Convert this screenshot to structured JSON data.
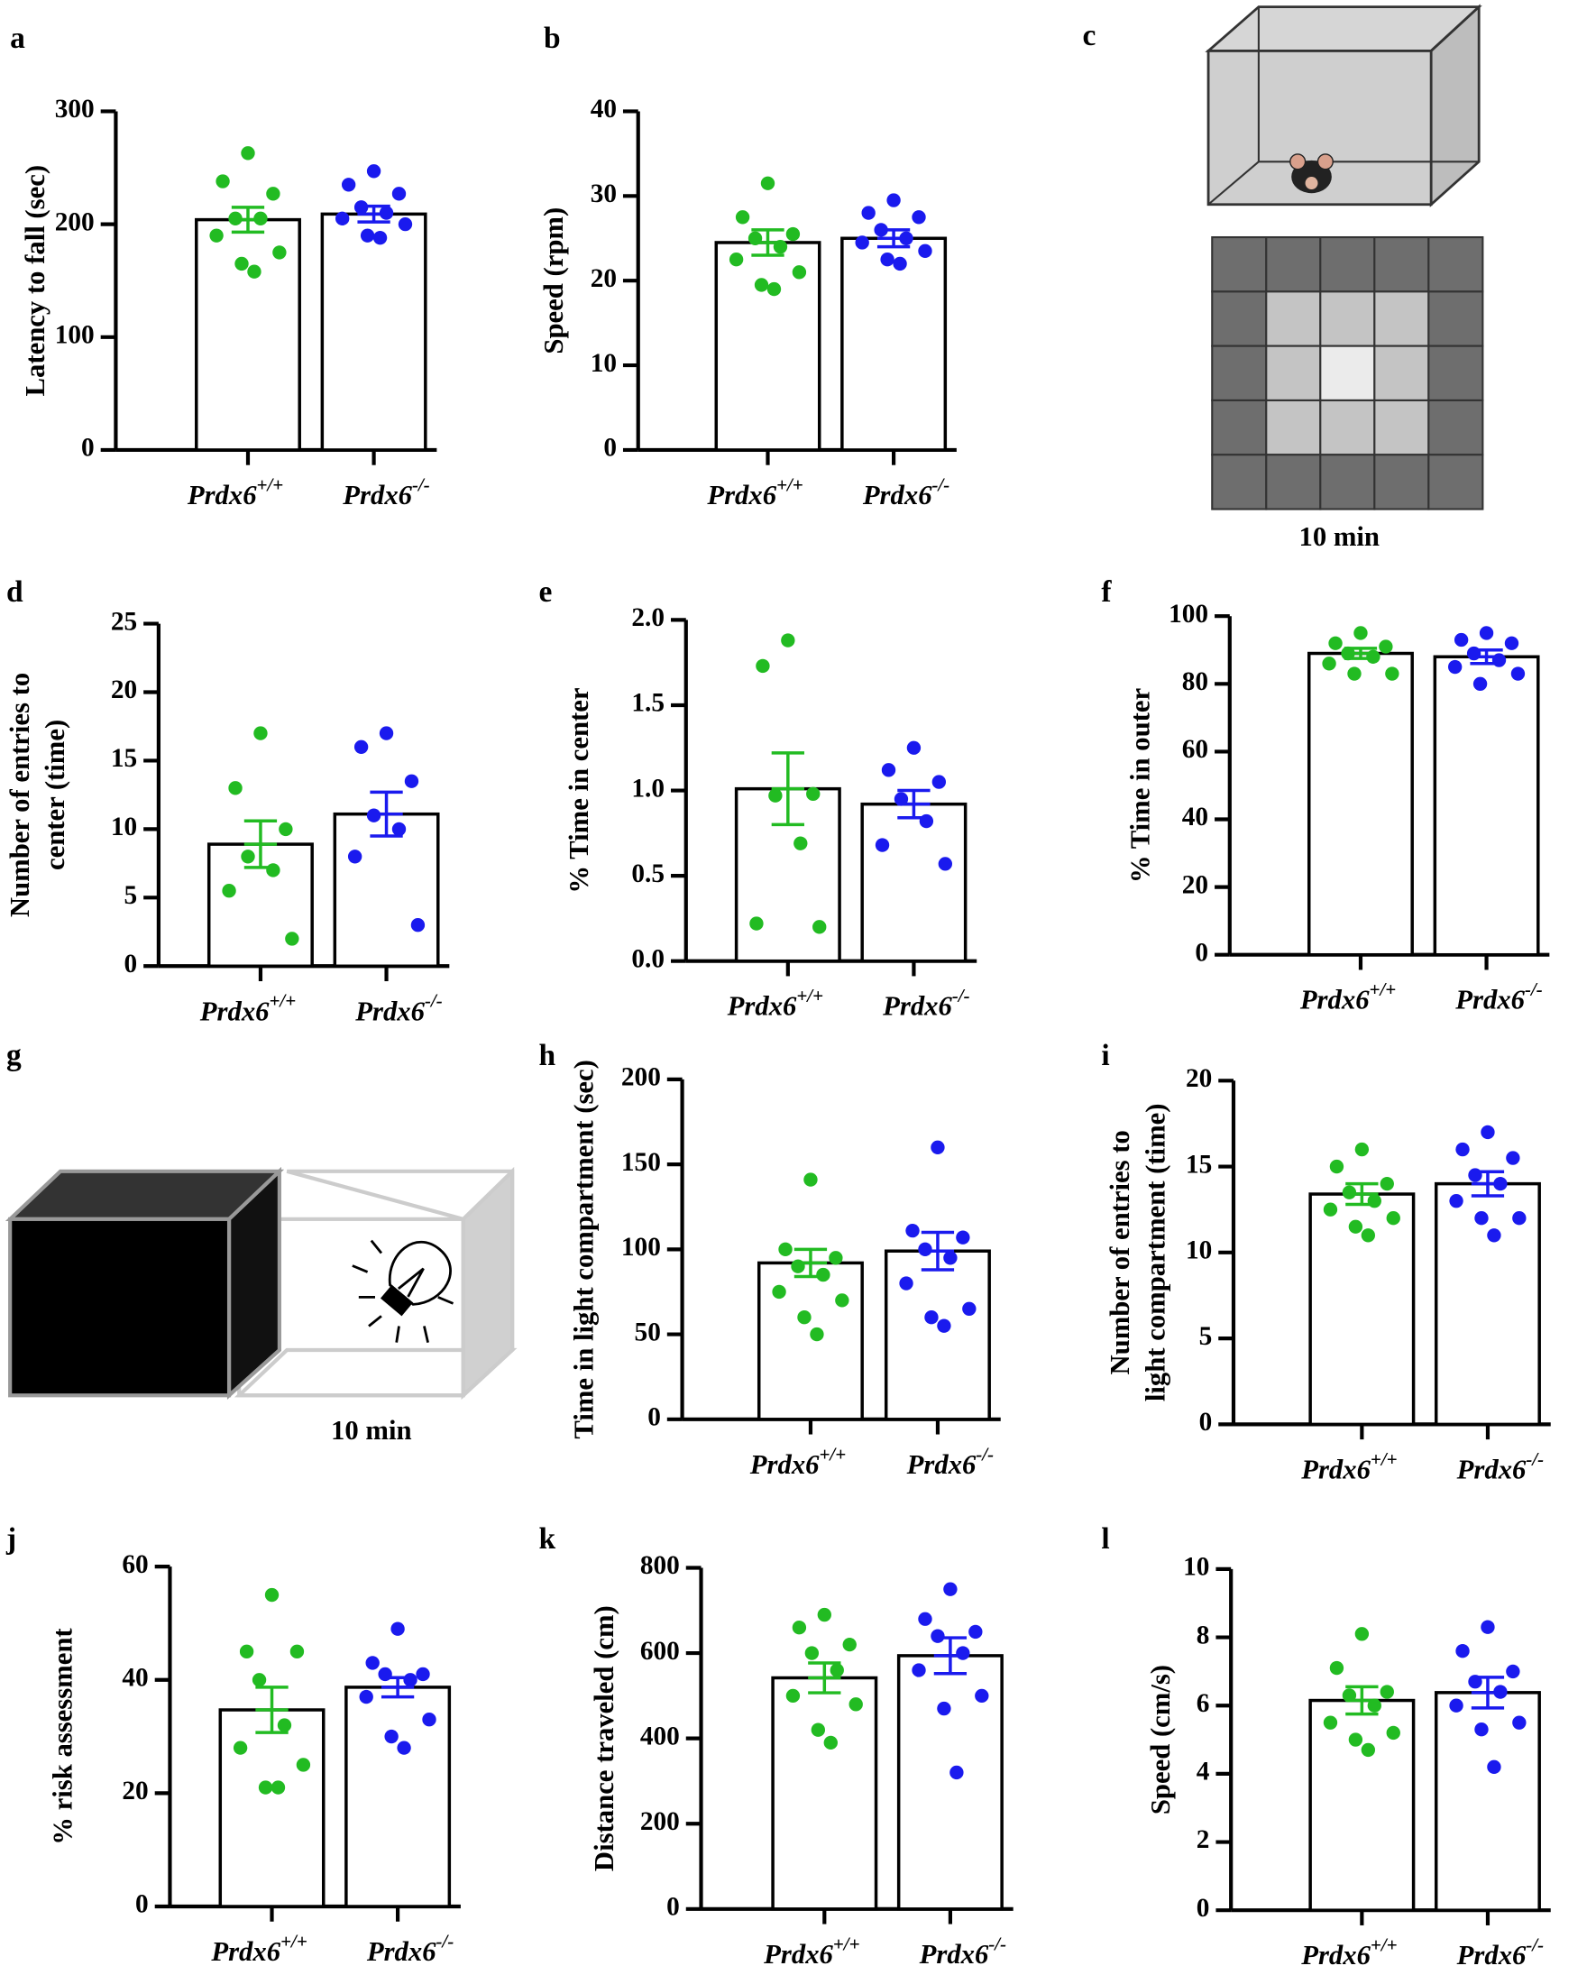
{
  "chart_data": [
    {
      "type": "bar",
      "label": "a",
      "y_label": [
        "Latency to fall (sec)"
      ],
      "categories": [
        "Prdx6+/+",
        "Prdx6-/-"
      ],
      "colors": [
        "#22bb22",
        "#1a1aee"
      ],
      "values": [
        204,
        209
      ],
      "errors": [
        11,
        7
      ],
      "points": [
        [
          263,
          238,
          227,
          205,
          205,
          190,
          175,
          165,
          158
        ],
        [
          247,
          235,
          227,
          215,
          210,
          205,
          200,
          190,
          188
        ]
      ],
      "ylim": [
        0,
        300
      ],
      "yticks": [
        0,
        100,
        200,
        300
      ]
    },
    {
      "type": "bar",
      "label": "b",
      "y_label": [
        "Speed (rpm)"
      ],
      "categories": [
        "Prdx6+/+",
        "Prdx6-/-"
      ],
      "colors": [
        "#22bb22",
        "#1a1aee"
      ],
      "values": [
        24.5,
        25
      ],
      "errors": [
        1.5,
        1
      ],
      "points": [
        [
          31.5,
          27.5,
          25.5,
          25,
          24,
          22.5,
          21,
          19.5,
          19
        ],
        [
          29.5,
          28,
          27.5,
          26,
          25,
          24.5,
          23.5,
          22.5,
          22
        ]
      ],
      "ylim": [
        0,
        40
      ],
      "yticks": [
        0,
        10,
        20,
        30,
        40
      ]
    },
    {
      "type": "bar",
      "label": "d",
      "y_label": [
        "Number of entries to",
        "center (time)"
      ],
      "categories": [
        "Prdx6+/+",
        "Prdx6-/-"
      ],
      "colors": [
        "#22bb22",
        "#1a1aee"
      ],
      "values": [
        8.9,
        11.1
      ],
      "errors": [
        1.7,
        1.6
      ],
      "points": [
        [
          17,
          13,
          10,
          8,
          7,
          5.5,
          2
        ],
        [
          17,
          16,
          13.5,
          11,
          10,
          8,
          3
        ]
      ],
      "ylim": [
        0,
        25
      ],
      "yticks": [
        0,
        5,
        10,
        15,
        20,
        25
      ]
    },
    {
      "type": "bar",
      "label": "e",
      "y_label": [
        "% Time in center"
      ],
      "categories": [
        "Prdx6+/+",
        "Prdx6-/-"
      ],
      "colors": [
        "#22bb22",
        "#1a1aee"
      ],
      "values": [
        1.01,
        0.92
      ],
      "errors": [
        0.21,
        0.08
      ],
      "points": [
        [
          1.88,
          1.73,
          0.98,
          0.97,
          0.69,
          0.22,
          0.2
        ],
        [
          1.25,
          1.12,
          1.05,
          0.95,
          0.82,
          0.68,
          0.57
        ]
      ],
      "ylim": [
        0,
        2
      ],
      "yticks": [
        {
          "value": 0,
          "label": "0.0"
        },
        {
          "value": 0.5,
          "label": "0.5"
        },
        {
          "value": 1,
          "label": "1.0"
        },
        {
          "value": 1.5,
          "label": "1.5"
        },
        {
          "value": 2,
          "label": "2.0"
        }
      ]
    },
    {
      "type": "bar",
      "label": "f",
      "y_label": [
        "% Time in outer"
      ],
      "categories": [
        "Prdx6+/+",
        "Prdx6-/-"
      ],
      "colors": [
        "#22bb22",
        "#1a1aee"
      ],
      "values": [
        89,
        88
      ],
      "errors": [
        1.5,
        2
      ],
      "points": [
        [
          95,
          92,
          91,
          89,
          88,
          86,
          83,
          83
        ],
        [
          95,
          93,
          92,
          89,
          87,
          85,
          83,
          80
        ]
      ],
      "ylim": [
        0,
        100
      ],
      "yticks": [
        0,
        20,
        40,
        60,
        80,
        100
      ]
    },
    {
      "type": "bar",
      "label": "h",
      "y_label": [
        "Time in light compartment (sec)"
      ],
      "categories": [
        "Prdx6+/+",
        "Prdx6-/-"
      ],
      "colors": [
        "#22bb22",
        "#1a1aee"
      ],
      "values": [
        92,
        99
      ],
      "errors": [
        8,
        11
      ],
      "points": [
        [
          141,
          100,
          95,
          90,
          85,
          75,
          70,
          60,
          50
        ],
        [
          160,
          111,
          107,
          100,
          95,
          80,
          65,
          60,
          55
        ]
      ],
      "ylim": [
        0,
        200
      ],
      "yticks": [
        0,
        50,
        100,
        150,
        200
      ]
    },
    {
      "type": "bar",
      "label": "i",
      "y_label": [
        "Number of entries to",
        "light compartment (time)"
      ],
      "categories": [
        "Prdx6+/+",
        "Prdx6-/-"
      ],
      "colors": [
        "#22bb22",
        "#1a1aee"
      ],
      "values": [
        13.4,
        14
      ],
      "errors": [
        0.6,
        0.7
      ],
      "points": [
        [
          16,
          15,
          14,
          13.5,
          13,
          12.5,
          12,
          11.5,
          11
        ],
        [
          17,
          16,
          15.5,
          14.5,
          14,
          13,
          12,
          12,
          11
        ]
      ],
      "ylim": [
        0,
        20
      ],
      "yticks": [
        0,
        5,
        10,
        15,
        20
      ]
    },
    {
      "type": "bar",
      "label": "j",
      "y_label": [
        "% risk assessment"
      ],
      "categories": [
        "Prdx6+/+",
        "Prdx6-/-"
      ],
      "colors": [
        "#22bb22",
        "#1a1aee"
      ],
      "values": [
        34.7,
        38.7
      ],
      "errors": [
        4,
        1.7
      ],
      "points": [
        [
          55,
          45,
          45,
          40,
          32,
          28,
          25,
          21,
          21
        ],
        [
          49,
          43,
          41,
          41,
          40,
          37,
          33,
          30,
          28
        ]
      ],
      "ylim": [
        0,
        60
      ],
      "yticks": [
        0,
        20,
        40,
        60
      ]
    },
    {
      "type": "bar",
      "label": "k",
      "y_label": [
        "Distance traveled (cm)"
      ],
      "categories": [
        "Prdx6+/+",
        "Prdx6-/-"
      ],
      "colors": [
        "#22bb22",
        "#1a1aee"
      ],
      "values": [
        542,
        594
      ],
      "errors": [
        35,
        42
      ],
      "points": [
        [
          690,
          660,
          620,
          600,
          560,
          500,
          480,
          420,
          390
        ],
        [
          750,
          680,
          650,
          640,
          600,
          560,
          500,
          470,
          320
        ]
      ],
      "ylim": [
        0,
        800
      ],
      "yticks": [
        0,
        200,
        400,
        600,
        800
      ]
    },
    {
      "type": "bar",
      "label": "l",
      "y_label": [
        "Speed (cm/s)"
      ],
      "categories": [
        "Prdx6+/+",
        "Prdx6-/-"
      ],
      "colors": [
        "#22bb22",
        "#1a1aee"
      ],
      "values": [
        6.15,
        6.38
      ],
      "errors": [
        0.4,
        0.45
      ],
      "points": [
        [
          8.1,
          7.1,
          6.4,
          6.3,
          6,
          5.5,
          5.2,
          5,
          4.7
        ],
        [
          8.3,
          7.6,
          7,
          6.7,
          6.4,
          6,
          5.5,
          5.3,
          4.2
        ]
      ],
      "ylim": [
        0,
        10
      ],
      "yticks": [
        0,
        2,
        4,
        6,
        8,
        10
      ]
    }
  ],
  "diagrams": [
    {
      "label": "c",
      "caption": "10 min"
    },
    {
      "label": "g",
      "caption": "10 min"
    }
  ]
}
